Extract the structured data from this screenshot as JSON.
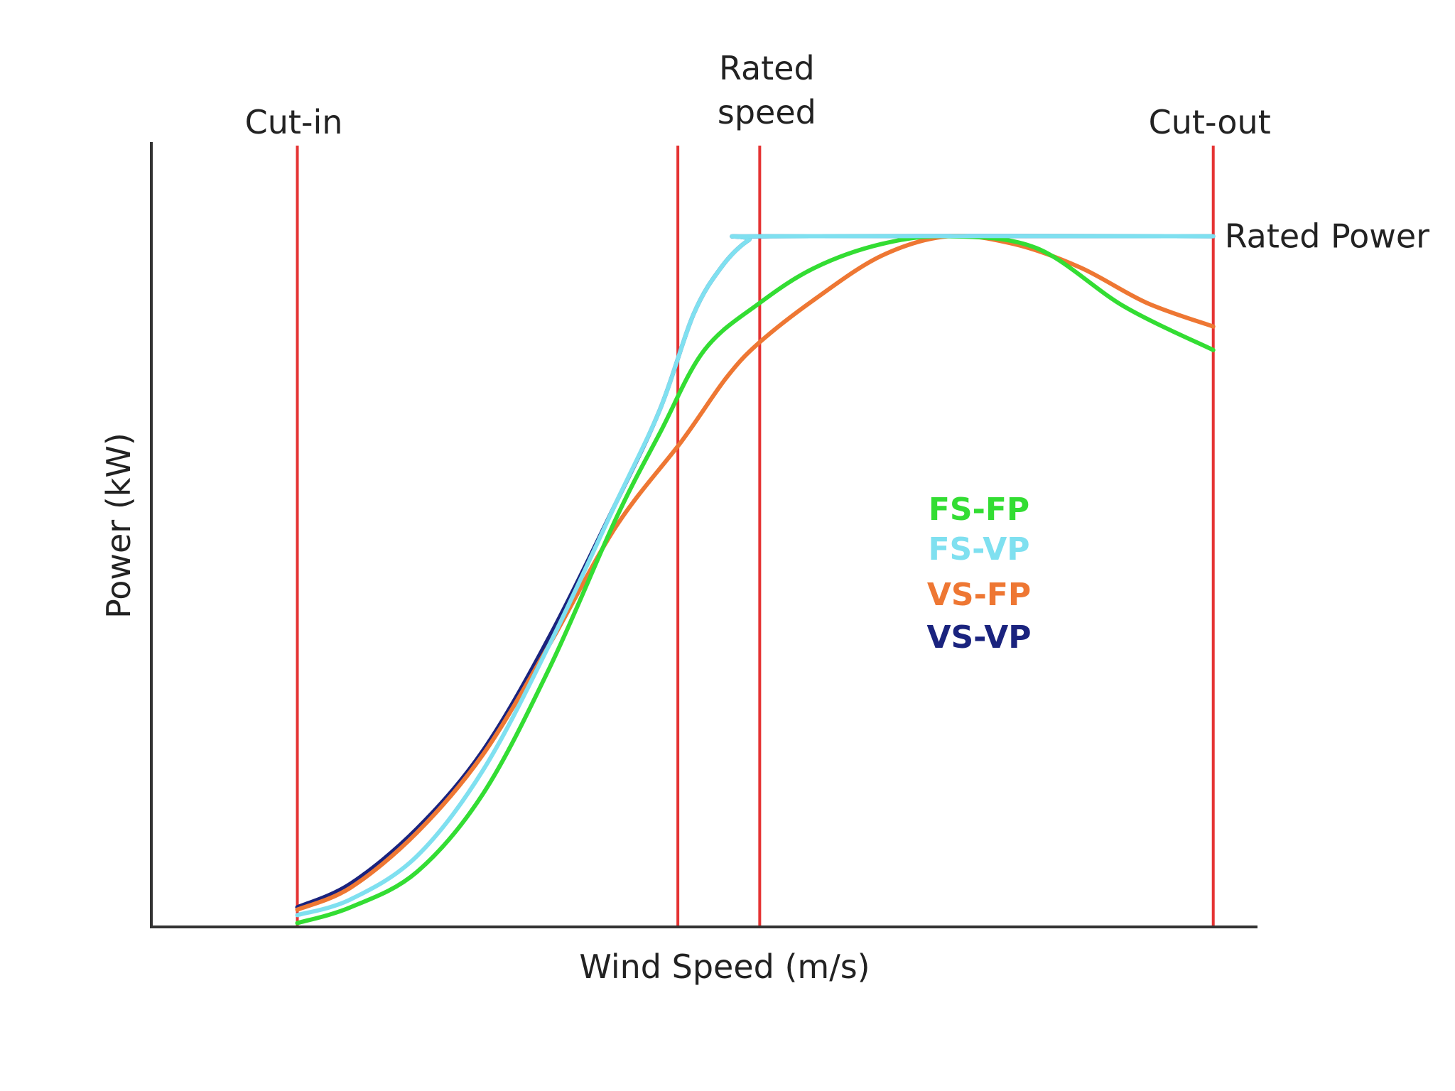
{
  "chart_data": {
    "type": "line",
    "title": "",
    "xlabel": "Wind Speed (m/s)",
    "ylabel": "Power (kW)",
    "x_range": [
      0,
      100
    ],
    "y_range": [
      0,
      100
    ],
    "grid": false,
    "legend_position": "center-right",
    "markers": [
      {
        "name": "Cut-in",
        "label": "Cut-in",
        "x": 13.2
      },
      {
        "name": "unlabeled-line",
        "label": "",
        "x": 47.6
      },
      {
        "name": "Rated speed",
        "label": "Rated speed",
        "label_lines": [
          "Rated",
          "speed"
        ],
        "x": 55.0
      },
      {
        "name": "Cut-out",
        "label": "Cut-out",
        "x": 96.0
      }
    ],
    "rated_power": {
      "label": "Rated Power",
      "y": 88
    },
    "series": [
      {
        "name": "FS-FP",
        "color": "#33dd33",
        "points": [
          [
            13.2,
            0.5
          ],
          [
            18,
            2.5
          ],
          [
            24,
            7
          ],
          [
            30,
            17
          ],
          [
            36,
            33
          ],
          [
            42,
            52
          ],
          [
            46,
            63
          ],
          [
            50,
            73.5
          ],
          [
            55,
            79.5
          ],
          [
            60,
            84
          ],
          [
            66,
            87
          ],
          [
            72,
            88
          ],
          [
            80,
            86.5
          ],
          [
            88,
            79
          ],
          [
            96,
            73.5
          ]
        ]
      },
      {
        "name": "FS-VP",
        "color": "#7fe0f0",
        "points": [
          [
            13.2,
            1.5
          ],
          [
            18,
            3.5
          ],
          [
            24,
            9
          ],
          [
            30,
            20
          ],
          [
            36,
            36
          ],
          [
            42,
            54
          ],
          [
            46,
            66
          ],
          [
            49,
            78
          ],
          [
            51.5,
            84
          ],
          [
            54,
            87.5
          ],
          [
            56,
            88
          ],
          [
            96,
            88
          ]
        ]
      },
      {
        "name": "VS-FP",
        "color": "#ee7733",
        "points": [
          [
            13.2,
            2.2
          ],
          [
            18,
            5
          ],
          [
            24,
            12
          ],
          [
            30,
            22
          ],
          [
            36,
            36
          ],
          [
            42,
            51
          ],
          [
            48,
            62
          ],
          [
            52,
            70
          ],
          [
            55,
            74.5
          ],
          [
            60,
            80
          ],
          [
            66,
            85.5
          ],
          [
            72,
            88
          ],
          [
            78,
            87
          ],
          [
            84,
            84
          ],
          [
            90,
            79.5
          ],
          [
            96,
            76.5
          ]
        ]
      },
      {
        "name": "VS-VP",
        "color": "#1a237e",
        "points": [
          [
            13.2,
            2.5
          ],
          [
            18,
            5.5
          ],
          [
            24,
            12.5
          ],
          [
            30,
            22.5
          ],
          [
            36,
            37
          ],
          [
            42,
            54
          ],
          [
            46,
            66
          ],
          [
            49,
            78
          ],
          [
            51.5,
            84
          ],
          [
            54,
            87.5
          ],
          [
            56,
            88
          ],
          [
            96,
            88
          ]
        ]
      }
    ]
  }
}
